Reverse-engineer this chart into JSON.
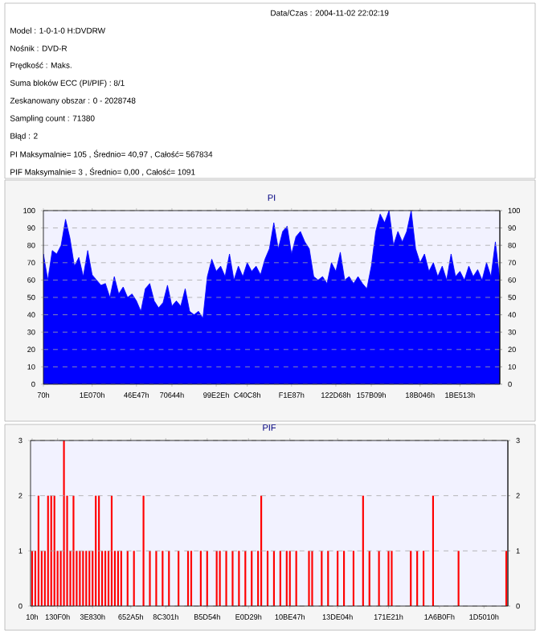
{
  "chart_data": [
    {
      "type": "other",
      "annotations": [
        "Data/Czas : 2004-11-02 22:02:19",
        "Model : 1-0-1-0 H:DVDRW",
        "Nośnik : DVD-R",
        "Prędkość : Maks.",
        "Suma bloków ECC (PI/PIF) : 8/1",
        "Zeskanowany obszar : 0 - 2028748",
        "Sampling count : 71380",
        "Błąd : 2",
        "PI Maksymalnie= 105 , Średnio= 40,97 , Całość= 567834",
        "PIF Maksymalnie= 3 , Średnio= 0,00 , Całość= 1091"
      ]
    },
    {
      "type": "area",
      "title": "PI",
      "color": "#0000ff",
      "grid": "y",
      "marker": "none",
      "categories": [
        "70h",
        null,
        null,
        null,
        null,
        null,
        null,
        null,
        null,
        null,
        null,
        "1E070h",
        null,
        null,
        null,
        null,
        null,
        null,
        null,
        null,
        null,
        "46E47h",
        null,
        null,
        null,
        null,
        null,
        null,
        null,
        "70644h",
        null,
        null,
        null,
        null,
        null,
        null,
        null,
        null,
        null,
        "99E2Eh",
        null,
        null,
        null,
        null,
        null,
        null,
        "C40C8h",
        null,
        null,
        null,
        null,
        null,
        null,
        null,
        null,
        null,
        "F1E87h",
        null,
        null,
        null,
        null,
        null,
        null,
        null,
        null,
        null,
        "122D68h",
        null,
        null,
        null,
        null,
        null,
        null,
        null,
        "157B09h",
        null,
        null,
        null,
        null,
        null,
        null,
        null,
        null,
        null,
        null,
        "18B046h",
        null,
        null,
        null,
        null,
        null,
        null,
        null,
        null,
        "1BE513h",
        null,
        null,
        null,
        null,
        null,
        null,
        null,
        null,
        null
      ],
      "ylim": [
        0,
        100
      ],
      "y2lim": [
        0,
        100
      ],
      "yticks": [
        0,
        10,
        20,
        30,
        40,
        50,
        60,
        70,
        80,
        90,
        100
      ],
      "y2ticks": [
        0,
        10,
        20,
        30,
        40,
        50,
        60,
        70,
        80,
        90,
        100
      ],
      "values": [
        75,
        60,
        77,
        75,
        80,
        95,
        84,
        68,
        73,
        62,
        77,
        63,
        60,
        57,
        58,
        50,
        62,
        52,
        56,
        50,
        52,
        48,
        42,
        55,
        58,
        48,
        44,
        47,
        57,
        45,
        48,
        45,
        55,
        42,
        40,
        42,
        38,
        62,
        72,
        65,
        68,
        62,
        75,
        60,
        68,
        62,
        70,
        65,
        68,
        63,
        72,
        78,
        93,
        78,
        88,
        91,
        75,
        85,
        88,
        82,
        78,
        62,
        60,
        62,
        58,
        70,
        65,
        76,
        60,
        62,
        58,
        62,
        58,
        55,
        68,
        88,
        98,
        93,
        100,
        80,
        88,
        82,
        88,
        100,
        78,
        70,
        75,
        65,
        70,
        62,
        68,
        60,
        75,
        62,
        65,
        60,
        68,
        62,
        66,
        60,
        70,
        62,
        82,
        60
      ]
    },
    {
      "type": "bar",
      "title": "PIF",
      "color": "#ff0000",
      "grid": "y",
      "categories": [
        "10h",
        null,
        null,
        null,
        null,
        null,
        null,
        null,
        "130F0h",
        null,
        null,
        null,
        null,
        null,
        null,
        null,
        null,
        null,
        null,
        "3E830h",
        null,
        null,
        null,
        null,
        null,
        null,
        null,
        null,
        null,
        null,
        null,
        "652A5h",
        null,
        null,
        null,
        null,
        null,
        null,
        null,
        null,
        null,
        null,
        "8C301h",
        null,
        null,
        null,
        null,
        null,
        null,
        null,
        null,
        null,
        null,
        null,
        null,
        "B5D54h",
        null,
        null,
        null,
        null,
        null,
        null,
        null,
        null,
        null,
        null,
        null,
        null,
        "E0D29h",
        null,
        null,
        null,
        null,
        null,
        null,
        null,
        null,
        null,
        null,
        null,
        null,
        "10BE47h",
        null,
        null,
        null,
        null,
        null,
        null,
        null,
        null,
        null,
        null,
        null,
        null,
        null,
        null,
        "13DE04h",
        null,
        null,
        null,
        null,
        null,
        null,
        null,
        null,
        null,
        null,
        null,
        null,
        null,
        null,
        null,
        "171E21h",
        null,
        null,
        null,
        null,
        null,
        null,
        null,
        null,
        null,
        null,
        null,
        null,
        null,
        null,
        null,
        "1A6B0Fh",
        null,
        null,
        null,
        null,
        null,
        null,
        null,
        null,
        null,
        null,
        null,
        null,
        null,
        "1D5010h",
        null,
        null,
        null,
        null,
        null,
        null,
        null
      ],
      "ylim": [
        0,
        3
      ],
      "y2lim": [
        0,
        3
      ],
      "yticks": [
        0,
        1,
        2,
        3
      ],
      "y2ticks": [
        0,
        1,
        2,
        3
      ],
      "values": [
        1,
        1,
        2,
        1,
        1,
        2,
        2,
        2,
        1,
        1,
        3,
        2,
        1,
        2,
        1,
        1,
        1,
        1,
        1,
        1,
        2,
        2,
        1,
        1,
        1,
        2,
        1,
        1,
        1,
        0,
        1,
        0,
        1,
        0,
        0,
        2,
        0,
        1,
        0,
        1,
        0,
        1,
        0,
        1,
        0,
        0,
        1,
        0,
        0,
        1,
        1,
        0,
        0,
        1,
        0,
        1,
        0,
        0,
        1,
        1,
        0,
        1,
        0,
        1,
        0,
        1,
        0,
        1,
        0,
        1,
        0,
        1,
        2,
        0,
        1,
        0,
        1,
        0,
        1,
        0,
        1,
        1,
        0,
        1,
        0,
        0,
        0,
        1,
        1,
        0,
        0,
        1,
        0,
        1,
        0,
        0,
        1,
        0,
        1,
        0,
        0,
        1,
        0,
        0,
        2,
        0,
        1,
        0,
        0,
        1,
        0,
        0,
        1,
        1,
        0,
        0,
        0,
        0,
        0,
        1,
        0,
        1,
        0,
        1,
        0,
        0,
        2,
        0,
        0,
        0,
        0,
        0,
        0,
        0,
        1,
        0,
        0,
        0,
        0,
        0,
        0,
        0,
        0,
        0,
        0,
        0,
        0,
        0,
        0,
        1
      ]
    }
  ]
}
